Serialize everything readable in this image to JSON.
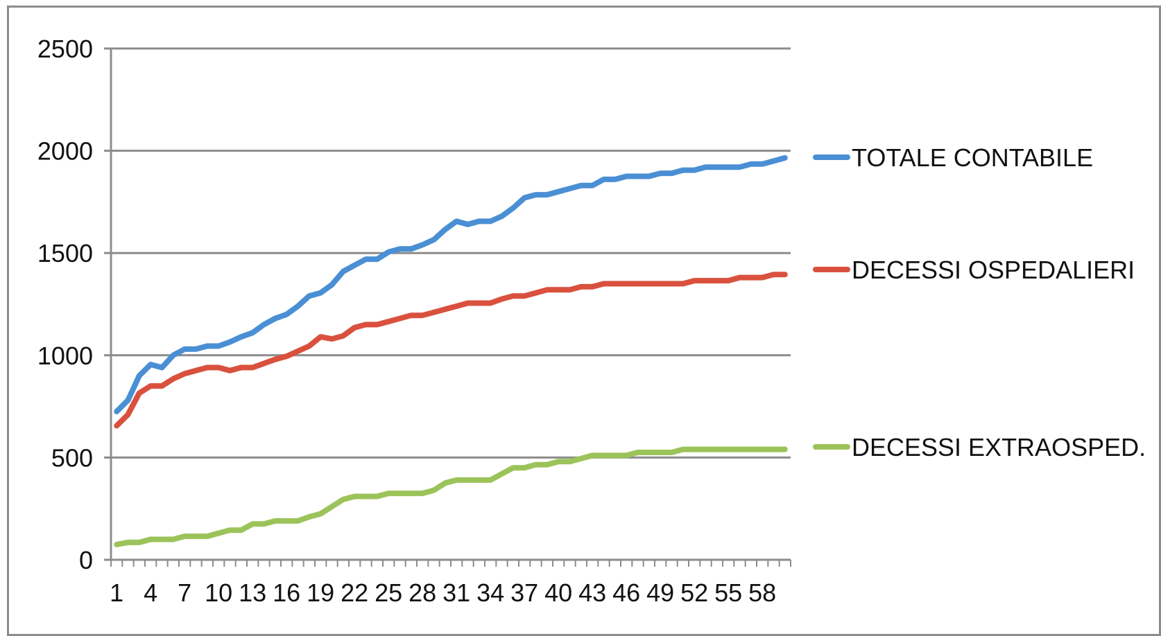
{
  "chart_data": {
    "type": "line",
    "title": "",
    "xlabel": "",
    "ylabel": "",
    "ylim": [
      0,
      2500
    ],
    "y_ticks": [
      0,
      500,
      1000,
      1500,
      2000,
      2500
    ],
    "x_count": 60,
    "x_tick_labels": [
      "1",
      "4",
      "7",
      "10",
      "13",
      "16",
      "19",
      "22",
      "25",
      "28",
      "31",
      "34",
      "37",
      "40",
      "43",
      "46",
      "49",
      "52",
      "55",
      "58"
    ],
    "grid": "horizontal",
    "legend_position": "right",
    "series": [
      {
        "name": "TOTALE CONTABILE",
        "color": "#4a8fd4",
        "values": [
          725,
          780,
          900,
          955,
          940,
          1000,
          1030,
          1030,
          1045,
          1045,
          1065,
          1090,
          1110,
          1150,
          1180,
          1200,
          1240,
          1290,
          1305,
          1345,
          1410,
          1440,
          1470,
          1470,
          1505,
          1520,
          1520,
          1540,
          1565,
          1615,
          1655,
          1640,
          1655,
          1655,
          1680,
          1720,
          1770,
          1785,
          1785,
          1800,
          1815,
          1830,
          1830,
          1860,
          1860,
          1875,
          1875,
          1875,
          1890,
          1890,
          1905,
          1905,
          1920,
          1920,
          1920,
          1920,
          1935,
          1935,
          1950,
          1965
        ]
      },
      {
        "name": "DECESSI OSPEDALIERI",
        "color": "#d9513e",
        "values": [
          655,
          710,
          815,
          850,
          850,
          885,
          910,
          925,
          940,
          940,
          925,
          940,
          940,
          960,
          980,
          995,
          1020,
          1045,
          1090,
          1080,
          1095,
          1135,
          1150,
          1150,
          1165,
          1180,
          1195,
          1195,
          1210,
          1225,
          1240,
          1255,
          1255,
          1255,
          1275,
          1290,
          1290,
          1305,
          1320,
          1320,
          1320,
          1335,
          1335,
          1350,
          1350,
          1350,
          1350,
          1350,
          1350,
          1350,
          1350,
          1365,
          1365,
          1365,
          1365,
          1380,
          1380,
          1380,
          1395,
          1395
        ]
      },
      {
        "name": "DECESSI EXTRAOSPED.",
        "color": "#9cc35a",
        "values": [
          75,
          85,
          85,
          100,
          100,
          100,
          115,
          115,
          115,
          130,
          145,
          145,
          175,
          175,
          190,
          190,
          190,
          210,
          225,
          260,
          295,
          310,
          310,
          310,
          325,
          325,
          325,
          325,
          340,
          375,
          390,
          390,
          390,
          390,
          420,
          450,
          450,
          465,
          465,
          480,
          480,
          495,
          510,
          510,
          510,
          510,
          525,
          525,
          525,
          525,
          540,
          540,
          540,
          540,
          540,
          540,
          540,
          540,
          540,
          540
        ]
      }
    ]
  }
}
